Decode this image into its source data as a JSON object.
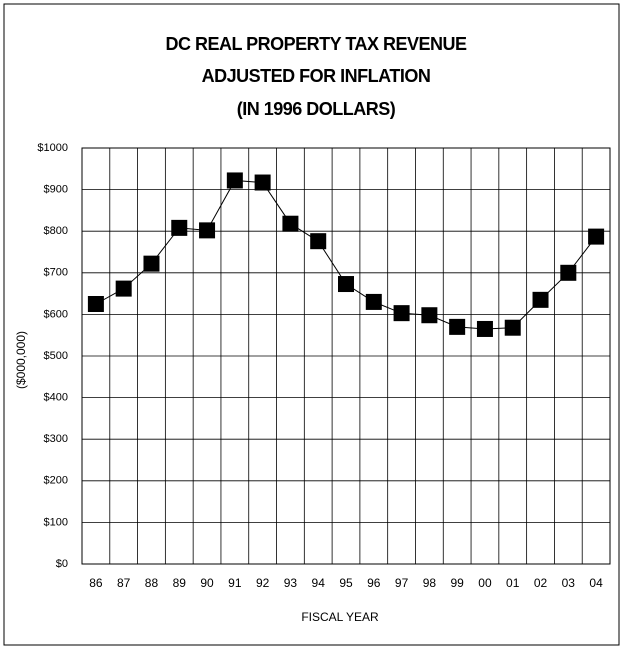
{
  "chart_data": {
    "type": "line",
    "title": [
      "DC REAL PROPERTY TAX REVENUE",
      "ADJUSTED FOR INFLATION",
      "(IN 1996 DOLLARS)"
    ],
    "x_label": "FISCAL YEAR",
    "y_label": "($000,000)",
    "categories": [
      "86",
      "87",
      "88",
      "89",
      "90",
      "91",
      "92",
      "93",
      "94",
      "95",
      "96",
      "97",
      "98",
      "99",
      "00",
      "01",
      "02",
      "03",
      "04"
    ],
    "values": [
      625,
      662,
      722,
      808,
      802,
      922,
      917,
      818,
      776,
      673,
      630,
      603,
      598,
      570,
      565,
      568,
      635,
      700,
      787
    ],
    "color": "#000000",
    "ylim": [
      0,
      1000
    ],
    "yticks": [
      {
        "value": 0,
        "label": "$0"
      },
      {
        "value": 100,
        "label": "$100"
      },
      {
        "value": 200,
        "label": "$200"
      },
      {
        "value": 300,
        "label": "$300"
      },
      {
        "value": 400,
        "label": "$400"
      },
      {
        "value": 500,
        "label": "$500"
      },
      {
        "value": 600,
        "label": "$600"
      },
      {
        "value": 700,
        "label": "$700"
      },
      {
        "value": 800,
        "label": "$800"
      },
      {
        "value": 900,
        "label": "$900"
      },
      {
        "value": 1000,
        "label": "$1000"
      }
    ],
    "grid": true
  }
}
